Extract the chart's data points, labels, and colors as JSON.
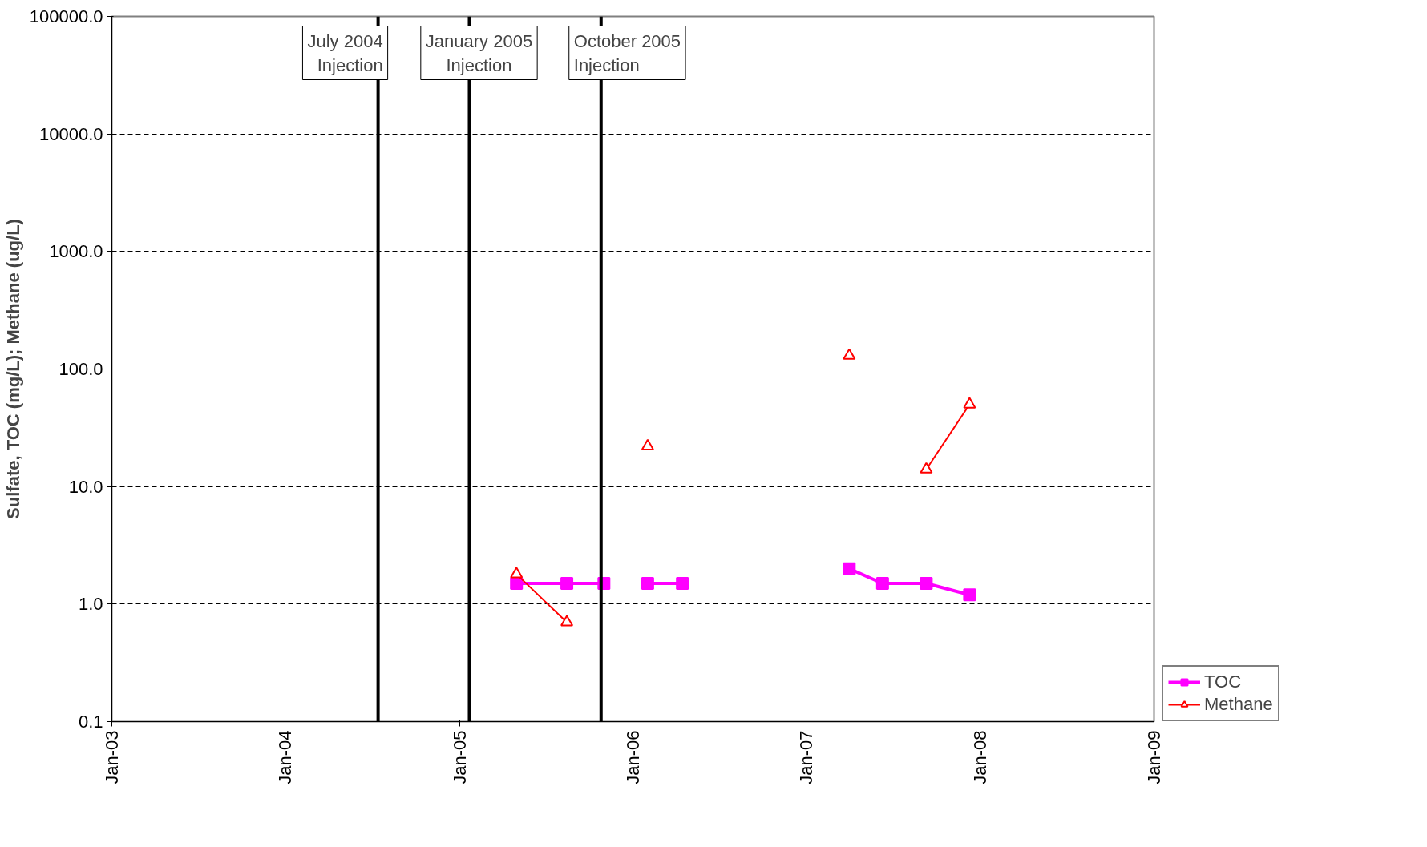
{
  "chart_data": {
    "type": "line",
    "ylabel": "Sulfate, TOC (mg/L); Methane (ug/L)",
    "log": "y",
    "ylim": [
      0.1,
      100000
    ],
    "yticks": [
      {
        "value": 0.1,
        "label": "0.1"
      },
      {
        "value": 1,
        "label": "1.0"
      },
      {
        "value": 10,
        "label": "10.0"
      },
      {
        "value": 100,
        "label": "100.0"
      },
      {
        "value": 1000,
        "label": "1000.0"
      },
      {
        "value": 10000,
        "label": "10000.0"
      },
      {
        "value": 100000,
        "label": "100000.0"
      }
    ],
    "xlim": [
      "2003-01-01",
      "2009-01-01"
    ],
    "xticks": [
      {
        "value": "2003-01-01",
        "label": "Jan-03"
      },
      {
        "value": "2004-01-01",
        "label": "Jan-04"
      },
      {
        "value": "2005-01-01",
        "label": "Jan-05"
      },
      {
        "value": "2006-01-01",
        "label": "Jan-06"
      },
      {
        "value": "2007-01-01",
        "label": "Jan-07"
      },
      {
        "value": "2008-01-01",
        "label": "Jan-08"
      },
      {
        "value": "2009-01-01",
        "label": "Jan-09"
      }
    ],
    "grid": "y",
    "legend": "bottom right",
    "series": [
      {
        "name": "TOC",
        "color": "#ff00ff",
        "marker": "square",
        "x": [
          "2005-05-01",
          "2005-08-15",
          "2005-11-01",
          "2005-12-15",
          "2006-02-01",
          "2006-04-15",
          "2006-10-01",
          "2007-04-01",
          "2007-06-10",
          "2007-09-10",
          "2007-12-10"
        ],
        "values": [
          1.5,
          1.5,
          1.5,
          null,
          1.5,
          1.5,
          null,
          2.0,
          1.5,
          1.5,
          1.2
        ]
      },
      {
        "name": "Methane",
        "color": "#ff0000",
        "marker": "triangle",
        "x": [
          "2005-05-01",
          "2005-08-15",
          "2005-11-01",
          "2006-02-01",
          "2006-10-01",
          "2007-04-01",
          "2007-06-10",
          "2007-09-10",
          "2007-12-10"
        ],
        "values": [
          1.8,
          0.7,
          null,
          22,
          null,
          130,
          null,
          14,
          50
        ]
      }
    ],
    "ref_lines": [
      {
        "axis": "x",
        "value": "2004-07-14",
        "label": "July 2004\nInjection",
        "color": "#000000"
      },
      {
        "axis": "x",
        "value": "2005-01-22",
        "label": "January 2005\nInjection",
        "color": "#000000"
      },
      {
        "axis": "x",
        "value": "2005-10-26",
        "label": "October 2005\nInjection",
        "color": "#000000"
      }
    ]
  }
}
